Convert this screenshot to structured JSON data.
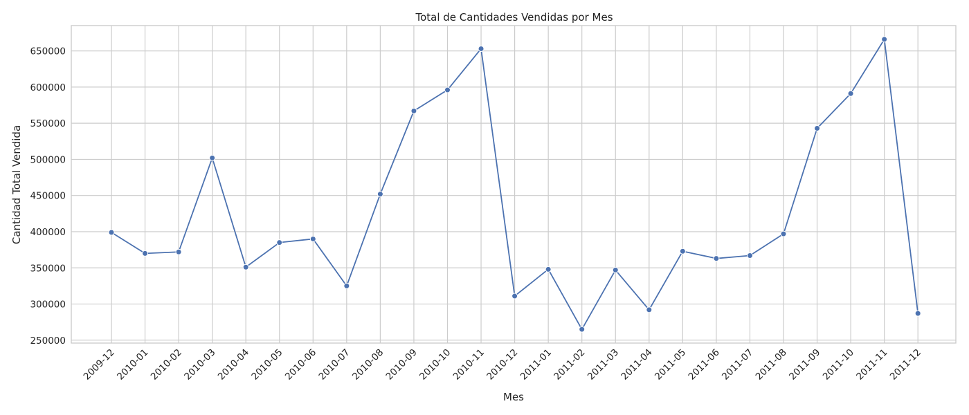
{
  "chart_data": {
    "type": "line",
    "title": "Total de Cantidades Vendidas por Mes",
    "xlabel": "Mes",
    "ylabel": "Cantidad Total Vendida",
    "categories": [
      "2009-12",
      "2010-01",
      "2010-02",
      "2010-03",
      "2010-04",
      "2010-05",
      "2010-06",
      "2010-07",
      "2010-08",
      "2010-09",
      "2010-10",
      "2010-11",
      "2010-12",
      "2011-01",
      "2011-02",
      "2011-03",
      "2011-04",
      "2011-05",
      "2011-06",
      "2011-07",
      "2011-08",
      "2011-09",
      "2011-10",
      "2011-11",
      "2011-12"
    ],
    "series": [
      {
        "values": [
          399000,
          370000,
          372000,
          502000,
          351000,
          385000,
          390000,
          325000,
          452000,
          567000,
          596000,
          653000,
          311000,
          348000,
          265000,
          347000,
          292000,
          373000,
          363000,
          367000,
          397000,
          543000,
          591000,
          666000,
          287000
        ],
        "color": "#4c72b0"
      }
    ],
    "yticks": [
      "250000",
      "300000",
      "350000",
      "400000",
      "450000",
      "500000",
      "550000",
      "600000",
      "650000"
    ],
    "ylim": [
      246000,
      685000
    ],
    "grid": true,
    "legend": "none"
  }
}
